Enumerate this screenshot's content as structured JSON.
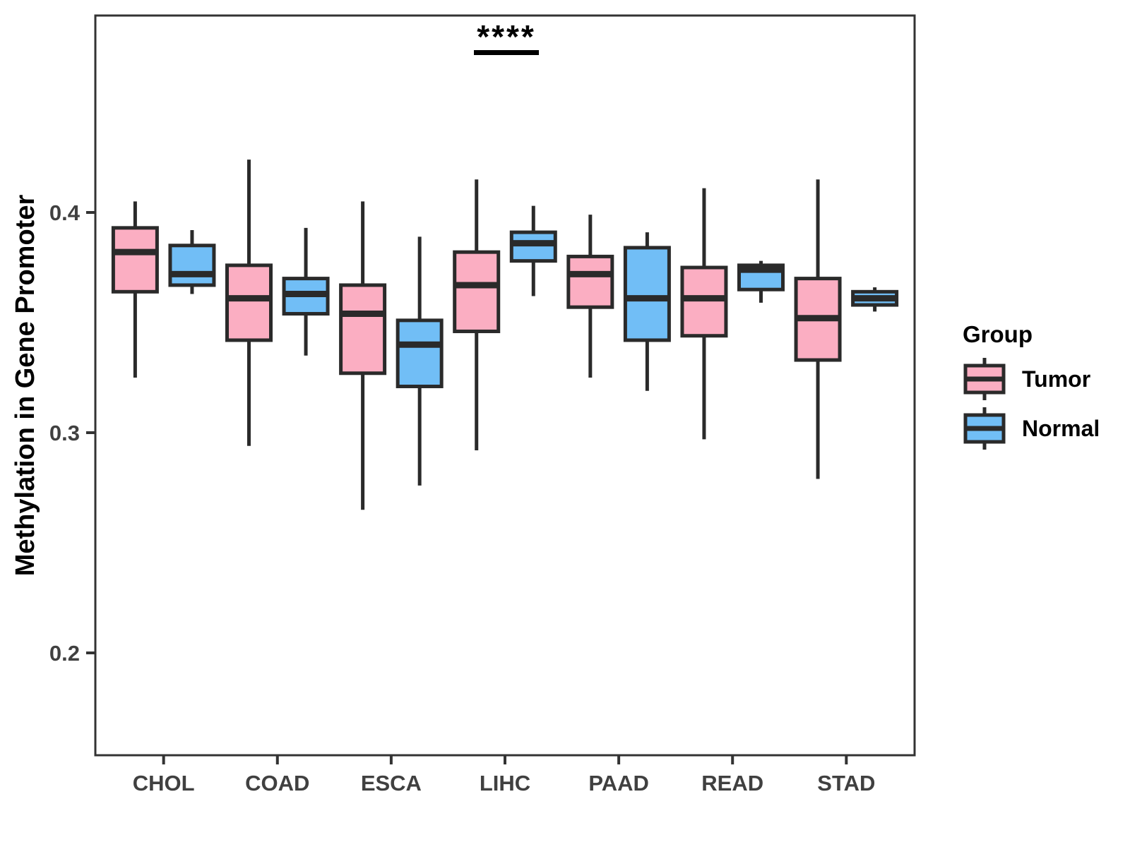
{
  "chart_data": {
    "type": "boxplot",
    "title": "",
    "xlabel": "",
    "ylabel": "Methylation in Gene Promoter",
    "categories": [
      "CHOL",
      "COAD",
      "ESCA",
      "LIHC",
      "PAAD",
      "READ",
      "STAD"
    ],
    "groups": [
      {
        "name": "Tumor",
        "color": "#FBAEC2"
      },
      {
        "name": "Normal",
        "color": "#71BEF6"
      }
    ],
    "series": [
      {
        "group": "Tumor",
        "boxes": [
          {
            "category": "CHOL",
            "whislo": 0.325,
            "q1": 0.364,
            "med": 0.382,
            "q3": 0.393,
            "whishi": 0.405
          },
          {
            "category": "COAD",
            "whislo": 0.294,
            "q1": 0.342,
            "med": 0.361,
            "q3": 0.376,
            "whishi": 0.424
          },
          {
            "category": "ESCA",
            "whislo": 0.265,
            "q1": 0.327,
            "med": 0.354,
            "q3": 0.367,
            "whishi": 0.405
          },
          {
            "category": "LIHC",
            "whislo": 0.292,
            "q1": 0.346,
            "med": 0.367,
            "q3": 0.382,
            "whishi": 0.415
          },
          {
            "category": "PAAD",
            "whislo": 0.325,
            "q1": 0.357,
            "med": 0.372,
            "q3": 0.38,
            "whishi": 0.399
          },
          {
            "category": "READ",
            "whislo": 0.297,
            "q1": 0.344,
            "med": 0.361,
            "q3": 0.375,
            "whishi": 0.411
          },
          {
            "category": "STAD",
            "whislo": 0.279,
            "q1": 0.333,
            "med": 0.352,
            "q3": 0.37,
            "whishi": 0.415
          }
        ]
      },
      {
        "group": "Normal",
        "boxes": [
          {
            "category": "CHOL",
            "whislo": 0.363,
            "q1": 0.367,
            "med": 0.372,
            "q3": 0.385,
            "whishi": 0.392
          },
          {
            "category": "COAD",
            "whislo": 0.335,
            "q1": 0.354,
            "med": 0.363,
            "q3": 0.37,
            "whishi": 0.393
          },
          {
            "category": "ESCA",
            "whislo": 0.276,
            "q1": 0.321,
            "med": 0.34,
            "q3": 0.351,
            "whishi": 0.389
          },
          {
            "category": "LIHC",
            "whislo": 0.362,
            "q1": 0.378,
            "med": 0.386,
            "q3": 0.391,
            "whishi": 0.403
          },
          {
            "category": "PAAD",
            "whislo": 0.319,
            "q1": 0.342,
            "med": 0.361,
            "q3": 0.384,
            "whishi": 0.391
          },
          {
            "category": "READ",
            "whislo": 0.359,
            "q1": 0.365,
            "med": 0.374,
            "q3": 0.376,
            "whishi": 0.378
          },
          {
            "category": "STAD",
            "whislo": 0.355,
            "q1": 0.358,
            "med": 0.361,
            "q3": 0.364,
            "whishi": 0.366
          }
        ]
      }
    ],
    "y_ticks": [
      {
        "value": 0.2,
        "label": "0.2"
      },
      {
        "value": 0.3,
        "label": "0.3"
      },
      {
        "value": 0.4,
        "label": "0.4"
      }
    ],
    "ylim": [
      0.153,
      0.489
    ],
    "grid": false,
    "annotation": {
      "text": "****",
      "category": "LIHC",
      "underline": true
    },
    "legend": {
      "title": "Group",
      "position": "right"
    },
    "style_colors": {
      "box_border": "#2A2A2A",
      "panel_border": "#333333",
      "tick_text": "#404040",
      "background": "#FFFFFF"
    }
  }
}
